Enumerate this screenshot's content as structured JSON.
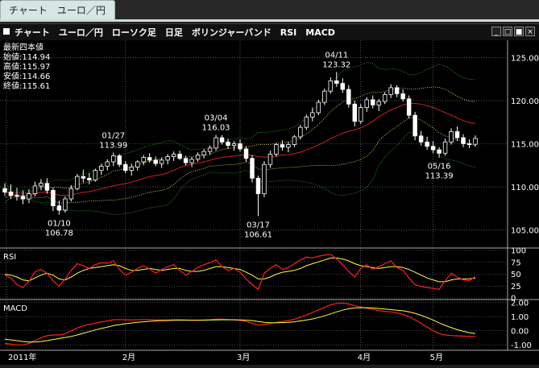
{
  "tab": {
    "label": "チャート　ユーロ／円"
  },
  "window": {
    "title": "チャート　ユーロ／円　ローソク足　日足　ボリンジャーバンド　RSI　MACD",
    "buttons": [
      {
        "name": "minimize-button",
        "glyph": "_"
      },
      {
        "name": "restore-button",
        "glyph": "□"
      },
      {
        "name": "maximize-button",
        "glyph": "■"
      },
      {
        "name": "close-button",
        "glyph": "×"
      }
    ]
  },
  "ohlc_box": {
    "header": "最新四本値",
    "open": "始値:114.94",
    "high": "高値:115.97",
    "low": "安値:114.66",
    "close": "終値:115.61"
  },
  "colors": {
    "background": "#000000",
    "candle_up": "#ffffff",
    "candle_down": "#ffffff",
    "bb_middle": "#cc2020",
    "bb_1sigma": "#e8e860",
    "bb_2sigma": "#2faa2f",
    "rsi_fast": "#ff2020",
    "rsi_slow": "#ffff40",
    "macd": "#ff2020",
    "signal": "#ffff40",
    "grid": "#8a8a8a"
  },
  "chart_data": [
    {
      "type": "candlestick",
      "title": "ユーロ／円",
      "ylim": [
        103,
        127
      ],
      "y_ticks": [
        "125.00",
        "120.00",
        "115.00",
        "110.00",
        "105.00"
      ],
      "x_ticks": [
        "2011年",
        "2月",
        "3月",
        "4月",
        "5月"
      ],
      "annotations": [
        {
          "date": "01/10",
          "value": "106.78"
        },
        {
          "date": "01/27",
          "value": "113.99"
        },
        {
          "date": "03/04",
          "value": "116.03"
        },
        {
          "date": "03/17",
          "value": "106.61"
        },
        {
          "date": "04/11",
          "value": "123.32"
        },
        {
          "date": "05/16",
          "value": "113.39"
        }
      ],
      "candles": [
        [
          109.8,
          110.4,
          109.0,
          109.4
        ],
        [
          109.4,
          110.3,
          108.6,
          109.0
        ],
        [
          109.0,
          109.9,
          108.4,
          108.9
        ],
        [
          108.9,
          109.6,
          108.0,
          108.6
        ],
        [
          108.6,
          109.7,
          108.1,
          109.2
        ],
        [
          109.2,
          110.6,
          108.9,
          110.1
        ],
        [
          110.1,
          110.9,
          109.6,
          110.4
        ],
        [
          110.4,
          111.0,
          109.2,
          109.6
        ],
        [
          109.6,
          109.9,
          107.2,
          107.8
        ],
        [
          107.8,
          108.4,
          106.78,
          107.3
        ],
        [
          107.3,
          108.9,
          107.0,
          108.6
        ],
        [
          108.6,
          110.2,
          108.3,
          109.8
        ],
        [
          109.8,
          111.5,
          109.6,
          111.2
        ],
        [
          111.2,
          112.0,
          110.5,
          111.0
        ],
        [
          111.0,
          111.6,
          110.3,
          110.8
        ],
        [
          110.8,
          112.1,
          110.6,
          111.9
        ],
        [
          111.9,
          112.7,
          111.4,
          112.4
        ],
        [
          112.4,
          113.2,
          111.9,
          112.9
        ],
        [
          112.9,
          113.99,
          112.4,
          113.6
        ],
        [
          113.6,
          113.8,
          112.3,
          112.6
        ],
        [
          112.6,
          113.0,
          111.6,
          111.9
        ],
        [
          111.9,
          112.7,
          111.3,
          112.3
        ],
        [
          112.3,
          113.1,
          111.9,
          112.9
        ],
        [
          112.9,
          113.7,
          112.5,
          113.4
        ],
        [
          113.4,
          113.9,
          112.8,
          113.1
        ],
        [
          113.1,
          113.5,
          112.4,
          112.7
        ],
        [
          112.7,
          113.4,
          112.2,
          113.1
        ],
        [
          113.1,
          113.8,
          112.6,
          113.5
        ],
        [
          113.5,
          114.1,
          113.0,
          113.8
        ],
        [
          113.8,
          114.2,
          113.1,
          113.3
        ],
        [
          113.3,
          113.6,
          112.5,
          112.8
        ],
        [
          112.8,
          113.5,
          112.3,
          113.2
        ],
        [
          113.2,
          114.0,
          112.9,
          113.7
        ],
        [
          113.7,
          114.4,
          113.3,
          114.1
        ],
        [
          114.1,
          114.8,
          113.7,
          114.5
        ],
        [
          114.5,
          116.03,
          114.2,
          115.7
        ],
        [
          115.7,
          116.0,
          114.9,
          115.2
        ],
        [
          115.2,
          115.6,
          114.4,
          114.8
        ],
        [
          114.8,
          115.3,
          114.2,
          115.0
        ],
        [
          115.0,
          115.5,
          114.1,
          114.4
        ],
        [
          114.4,
          114.7,
          112.9,
          113.3
        ],
        [
          113.3,
          113.7,
          110.5,
          111.0
        ],
        [
          111.0,
          111.3,
          106.61,
          109.2
        ],
        [
          109.2,
          113.0,
          108.8,
          112.6
        ],
        [
          112.6,
          114.2,
          112.2,
          113.8
        ],
        [
          113.8,
          115.1,
          113.5,
          114.9
        ],
        [
          114.9,
          115.4,
          114.2,
          114.6
        ],
        [
          114.6,
          115.2,
          114.0,
          114.9
        ],
        [
          114.9,
          116.0,
          114.6,
          115.8
        ],
        [
          115.8,
          117.2,
          115.5,
          116.9
        ],
        [
          116.9,
          118.4,
          116.6,
          118.1
        ],
        [
          118.1,
          119.2,
          117.6,
          118.6
        ],
        [
          118.6,
          120.1,
          118.3,
          119.8
        ],
        [
          119.8,
          121.4,
          119.5,
          121.1
        ],
        [
          121.1,
          122.7,
          120.8,
          122.3
        ],
        [
          122.3,
          123.32,
          121.6,
          122.0
        ],
        [
          122.0,
          122.6,
          120.9,
          121.3
        ],
        [
          121.3,
          121.8,
          119.2,
          119.6
        ],
        [
          119.6,
          120.0,
          117.0,
          117.6
        ],
        [
          117.6,
          119.6,
          117.3,
          119.2
        ],
        [
          119.2,
          120.4,
          118.7,
          120.1
        ],
        [
          120.1,
          120.6,
          119.1,
          119.5
        ],
        [
          119.5,
          120.2,
          118.8,
          119.9
        ],
        [
          119.9,
          121.0,
          119.6,
          120.7
        ],
        [
          120.7,
          121.9,
          120.3,
          121.5
        ],
        [
          121.5,
          121.8,
          120.4,
          120.8
        ],
        [
          120.8,
          121.3,
          119.9,
          120.2
        ],
        [
          120.2,
          120.6,
          117.9,
          118.3
        ],
        [
          118.3,
          118.7,
          115.4,
          115.9
        ],
        [
          115.9,
          116.5,
          114.8,
          115.2
        ],
        [
          115.2,
          115.8,
          114.3,
          114.7
        ],
        [
          114.7,
          115.3,
          113.9,
          114.3
        ],
        [
          114.3,
          114.6,
          113.39,
          113.9
        ],
        [
          113.9,
          115.6,
          113.6,
          115.2
        ],
        [
          115.2,
          116.8,
          114.9,
          116.4
        ],
        [
          116.4,
          117.0,
          115.3,
          115.7
        ],
        [
          115.7,
          116.1,
          114.6,
          115.0
        ],
        [
          115.0,
          115.5,
          114.5,
          114.9
        ],
        [
          114.94,
          115.97,
          114.66,
          115.61
        ]
      ]
    },
    {
      "type": "line",
      "title": "RSI",
      "ylim": [
        0,
        100
      ],
      "y_ticks": [
        "100",
        "75",
        "50",
        "25",
        "0"
      ],
      "series": [
        {
          "values": [
            48,
            42,
            28,
            22,
            35,
            55,
            60,
            52,
            36,
            25,
            40,
            58,
            72,
            68,
            62,
            70,
            74,
            73,
            78,
            60,
            48,
            54,
            62,
            68,
            61,
            52,
            60,
            66,
            70,
            58,
            48,
            56,
            64,
            70,
            74,
            80,
            66,
            58,
            62,
            54,
            40,
            28,
            18,
            52,
            62,
            70,
            60,
            64,
            72,
            80,
            86,
            84,
            88,
            90,
            92,
            82,
            70,
            56,
            44,
            62,
            70,
            60,
            66,
            72,
            78,
            64,
            58,
            42,
            28,
            24,
            22,
            20,
            18,
            36,
            52,
            44,
            38,
            36,
            45
          ]
        },
        {
          "values": [
            50,
            48,
            44,
            38,
            36,
            42,
            48,
            52,
            48,
            40,
            38,
            44,
            52,
            58,
            62,
            64,
            66,
            68,
            70,
            68,
            62,
            58,
            58,
            60,
            62,
            60,
            58,
            60,
            62,
            62,
            58,
            56,
            56,
            58,
            62,
            66,
            66,
            64,
            62,
            60,
            54,
            48,
            40,
            40,
            44,
            50,
            54,
            56,
            58,
            62,
            68,
            72,
            76,
            80,
            84,
            84,
            82,
            78,
            72,
            68,
            66,
            64,
            62,
            64,
            66,
            66,
            64,
            60,
            54,
            48,
            42,
            38,
            34,
            34,
            38,
            40,
            40,
            40,
            42
          ]
        }
      ]
    },
    {
      "type": "line",
      "title": "MACD",
      "ylim": [
        -1.1,
        2.1
      ],
      "y_ticks": [
        "2.00",
        "1.00",
        "0.00",
        "-1.00"
      ],
      "series": [
        {
          "values": [
            -0.9,
            -0.95,
            -1.0,
            -1.0,
            -0.9,
            -0.7,
            -0.5,
            -0.35,
            -0.3,
            -0.3,
            -0.2,
            0.0,
            0.2,
            0.35,
            0.45,
            0.55,
            0.62,
            0.7,
            0.78,
            0.8,
            0.78,
            0.76,
            0.78,
            0.8,
            0.8,
            0.78,
            0.76,
            0.76,
            0.78,
            0.78,
            0.76,
            0.74,
            0.74,
            0.76,
            0.78,
            0.82,
            0.82,
            0.8,
            0.78,
            0.74,
            0.66,
            0.54,
            0.4,
            0.44,
            0.52,
            0.6,
            0.66,
            0.72,
            0.82,
            0.96,
            1.12,
            1.3,
            1.48,
            1.66,
            1.84,
            1.94,
            1.96,
            1.9,
            1.78,
            1.68,
            1.6,
            1.52,
            1.44,
            1.38,
            1.34,
            1.26,
            1.16,
            1.0,
            0.78,
            0.52,
            0.26,
            0.02,
            -0.2,
            -0.3,
            -0.34,
            -0.36,
            -0.38,
            -0.4,
            -0.4
          ]
        },
        {
          "values": [
            -0.6,
            -0.65,
            -0.7,
            -0.76,
            -0.8,
            -0.8,
            -0.76,
            -0.7,
            -0.62,
            -0.55,
            -0.48,
            -0.4,
            -0.3,
            -0.18,
            -0.06,
            0.06,
            0.16,
            0.26,
            0.36,
            0.44,
            0.5,
            0.55,
            0.6,
            0.64,
            0.67,
            0.7,
            0.72,
            0.73,
            0.74,
            0.75,
            0.75,
            0.75,
            0.75,
            0.75,
            0.76,
            0.77,
            0.78,
            0.78,
            0.78,
            0.77,
            0.75,
            0.72,
            0.66,
            0.6,
            0.56,
            0.56,
            0.58,
            0.6,
            0.64,
            0.7,
            0.76,
            0.84,
            0.94,
            1.06,
            1.2,
            1.34,
            1.46,
            1.56,
            1.62,
            1.64,
            1.64,
            1.62,
            1.58,
            1.54,
            1.5,
            1.46,
            1.42,
            1.34,
            1.24,
            1.1,
            0.94,
            0.76,
            0.56,
            0.38,
            0.22,
            0.08,
            -0.04,
            -0.14,
            -0.2
          ]
        }
      ]
    }
  ]
}
